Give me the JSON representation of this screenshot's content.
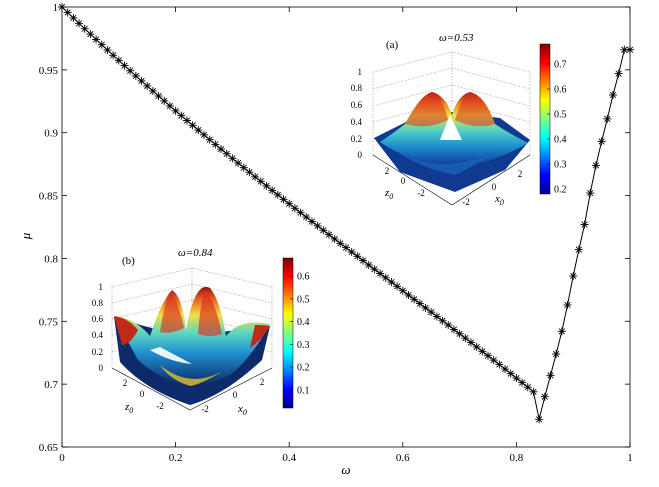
{
  "chart_data": {
    "type": "line",
    "title": "",
    "xlabel": "ω",
    "ylabel": "μ",
    "xlim": [
      0,
      1
    ],
    "ylim": [
      0.65,
      1
    ],
    "xticks": [
      "0",
      "0.2",
      "0.4",
      "0.6",
      "0.8",
      "1"
    ],
    "yticks": [
      "0.65",
      "0.7",
      "0.75",
      "0.8",
      "0.85",
      "0.9",
      "0.95",
      "1"
    ],
    "grid": false,
    "marker": "asterisk",
    "series": [
      {
        "x": [
          0,
          0.01,
          0.02,
          0.03,
          0.04,
          0.05,
          0.06,
          0.07,
          0.08,
          0.09,
          0.1,
          0.11,
          0.12,
          0.13,
          0.14,
          0.15,
          0.16,
          0.17,
          0.18,
          0.19,
          0.2,
          0.21,
          0.22,
          0.23,
          0.24,
          0.25,
          0.26,
          0.27,
          0.28,
          0.29,
          0.3,
          0.31,
          0.32,
          0.33,
          0.34,
          0.35,
          0.36,
          0.37,
          0.38,
          0.39,
          0.4,
          0.41,
          0.42,
          0.43,
          0.44,
          0.45,
          0.46,
          0.47,
          0.48,
          0.49,
          0.5,
          0.51,
          0.52,
          0.53,
          0.54,
          0.55,
          0.56,
          0.57,
          0.58,
          0.59,
          0.6,
          0.61,
          0.62,
          0.63,
          0.64,
          0.65,
          0.66,
          0.67,
          0.68,
          0.69,
          0.7,
          0.71,
          0.72,
          0.73,
          0.74,
          0.75,
          0.76,
          0.77,
          0.78,
          0.79,
          0.8,
          0.81,
          0.82,
          0.83,
          0.84,
          0.85,
          0.86,
          0.87,
          0.88,
          0.89,
          0.9,
          0.91,
          0.92,
          0.93,
          0.94,
          0.95,
          0.96,
          0.97,
          0.98,
          0.99,
          1.0
        ],
        "y": [
          1.0,
          0.9956,
          0.9913,
          0.987,
          0.9827,
          0.9784,
          0.9742,
          0.97,
          0.9658,
          0.9616,
          0.9575,
          0.9534,
          0.9493,
          0.9452,
          0.9412,
          0.9372,
          0.9332,
          0.9292,
          0.9253,
          0.9213,
          0.9174,
          0.9136,
          0.9097,
          0.9059,
          0.9021,
          0.8983,
          0.8945,
          0.8907,
          0.887,
          0.8833,
          0.8796,
          0.8759,
          0.8722,
          0.8686,
          0.8649,
          0.8613,
          0.8577,
          0.8541,
          0.8506,
          0.847,
          0.8435,
          0.8399,
          0.8364,
          0.8329,
          0.8294,
          0.8259,
          0.8224,
          0.8189,
          0.8155,
          0.812,
          0.8086,
          0.8051,
          0.8017,
          0.7983,
          0.7948,
          0.7914,
          0.788,
          0.7846,
          0.7812,
          0.7778,
          0.7743,
          0.7709,
          0.7675,
          0.7641,
          0.7607,
          0.7573,
          0.7538,
          0.7504,
          0.747,
          0.7435,
          0.7401,
          0.7366,
          0.7331,
          0.7296,
          0.7261,
          0.7226,
          0.7191,
          0.7156,
          0.712,
          0.7084,
          0.7048,
          0.7012,
          0.6976,
          0.6939,
          0.672,
          0.69,
          0.707,
          0.724,
          0.742,
          0.763,
          0.786,
          0.807,
          0.827,
          0.852,
          0.874,
          0.893,
          0.911,
          0.93,
          0.947,
          0.966,
          0.966
        ]
      }
    ]
  },
  "insets": [
    {
      "label": "(a)",
      "title": "ω=0.53",
      "zticks": [
        "0",
        "0.2",
        "0.4",
        "0.6",
        "0.8",
        "1"
      ],
      "xticks": [
        "-2",
        "0",
        "2"
      ],
      "zticks_side": [
        "-2",
        "0",
        "2"
      ],
      "xlabel": "x",
      "xlabel_sub": "0",
      "ylabel": "z",
      "ylabel_sub": "0",
      "colorbar_ticks": [
        "0.2",
        "0.3",
        "0.4",
        "0.5",
        "0.6",
        "0.7"
      ],
      "colorbar_range": [
        0.18,
        0.78
      ]
    },
    {
      "label": "(b)",
      "title": "ω=0.84",
      "zticks": [
        "0",
        "0.2",
        "0.4",
        "0.6",
        "0.8",
        "1"
      ],
      "xticks": [
        "-2",
        "0",
        "2"
      ],
      "zticks_side": [
        "-2",
        "0",
        "2"
      ],
      "xlabel": "x",
      "xlabel_sub": "0",
      "ylabel": "z",
      "ylabel_sub": "0",
      "colorbar_ticks": [
        "0.1",
        "0.2",
        "0.3",
        "0.4",
        "0.5",
        "0.6"
      ],
      "colorbar_range": [
        0.02,
        0.68
      ]
    }
  ]
}
